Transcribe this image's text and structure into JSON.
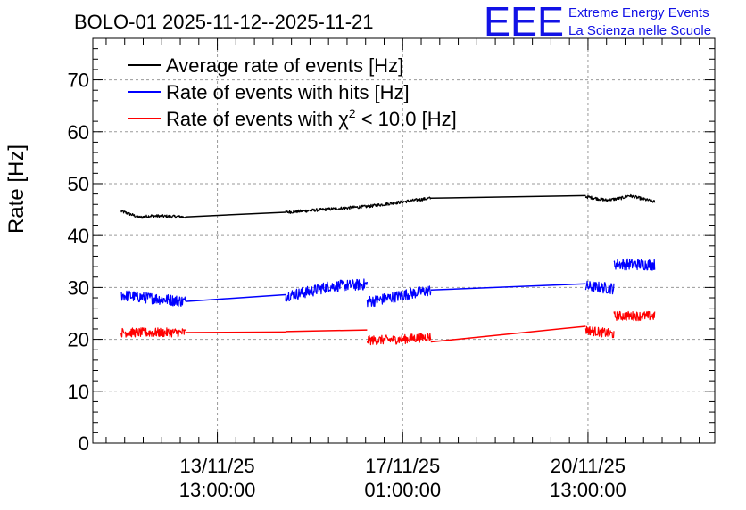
{
  "chart_data": {
    "type": "line",
    "title": "BOLO-01 2025-11-12--2025-11-21",
    "ylabel": "Rate [Hz]",
    "xlabel": "",
    "ylim": [
      0,
      78
    ],
    "y_ticks": [
      0,
      10,
      20,
      30,
      40,
      50,
      60,
      70
    ],
    "x_ticks": [
      {
        "day": 1.5,
        "line1": "13/11/25",
        "line2": "13:00:00"
      },
      {
        "day": 4.0,
        "line1": "17/11/25",
        "line2": "01:00:00"
      },
      {
        "day": 6.5,
        "line1": "20/11/25",
        "line2": "13:00:00"
      }
    ],
    "xlim_days": [
      -0.18,
      8.21
    ],
    "grid": true,
    "legend_position": "top-left",
    "series": [
      {
        "name": "Average rate of events [Hz]",
        "color": "#000000",
        "noise": 0.3,
        "segments": [
          {
            "x": [
              0.2,
              0.35,
              0.45,
              0.6,
              1.07
            ],
            "y": [
              44.7,
              44.0,
              43.5,
              43.8,
              43.6
            ]
          },
          {
            "x": [
              1.07,
              2.42
            ],
            "y": [
              43.6,
              44.5
            ]
          },
          {
            "x": [
              2.42,
              3.52,
              4.38
            ],
            "y": [
              44.5,
              45.6,
              47.2
            ]
          },
          {
            "x": [
              4.38,
              6.47
            ],
            "y": [
              47.2,
              47.7
            ]
          },
          {
            "x": [
              6.47,
              6.75,
              6.95,
              7.05,
              7.4
            ],
            "y": [
              47.5,
              46.8,
              47.2,
              47.7,
              46.5
            ]
          }
        ]
      },
      {
        "name": "Rate of events with hits [Hz]",
        "color": "#0000ff",
        "noise": 1.1,
        "segments": [
          {
            "x": [
              0.2,
              1.07
            ],
            "y": [
              28.5,
              27.3
            ]
          },
          {
            "x": [
              1.07,
              2.42
            ],
            "y": [
              27.3,
              28.6
            ]
          },
          {
            "x": [
              2.42,
              2.75,
              3.0,
              3.52
            ],
            "y": [
              28.4,
              29.2,
              30.2,
              30.6
            ]
          },
          {
            "x": [
              3.52,
              3.65,
              4.0,
              4.38
            ],
            "y": [
              27.3,
              27.5,
              28.5,
              29.5
            ]
          },
          {
            "x": [
              4.38,
              6.47
            ],
            "y": [
              29.5,
              30.7
            ]
          },
          {
            "x": [
              6.47,
              6.85
            ],
            "y": [
              30.2,
              29.8
            ]
          },
          {
            "x": [
              6.85,
              7.4
            ],
            "y": [
              34.5,
              34.4
            ]
          }
        ]
      },
      {
        "name": "Rate of events with χ² < 10.0 [Hz]",
        "color": "#ff0000",
        "noise": 0.9,
        "segments": [
          {
            "x": [
              0.2,
              1.07
            ],
            "y": [
              21.3,
              21.3
            ]
          },
          {
            "x": [
              1.07,
              2.42
            ],
            "y": [
              21.3,
              21.4
            ]
          },
          {
            "x": [
              2.42,
              3.52
            ],
            "y": [
              21.5,
              21.8
            ]
          },
          {
            "x": [
              3.52,
              4.0,
              4.38
            ],
            "y": [
              19.8,
              20.0,
              20.5
            ]
          },
          {
            "x": [
              4.38,
              6.47
            ],
            "y": [
              19.5,
              22.5
            ]
          },
          {
            "x": [
              6.47,
              6.85
            ],
            "y": [
              21.8,
              21.0
            ]
          },
          {
            "x": [
              6.85,
              7.4
            ],
            "y": [
              24.5,
              24.5
            ]
          }
        ]
      }
    ]
  },
  "legend": {
    "entries": [
      "Average rate of events [Hz]",
      "Rate of events with hits [Hz]",
      "Rate of events with χ² < 10.0 [Hz]"
    ],
    "chi_prefix": "Rate of events with ",
    "chi_symbol": "χ",
    "chi_exponent": "2",
    "chi_suffix": " < 10.0 [Hz]"
  },
  "logo": {
    "mark": "EEE",
    "line1": "Extreme Energy Events",
    "line2": "La Scienza nelle Scuole",
    "color": "#1212e6"
  }
}
